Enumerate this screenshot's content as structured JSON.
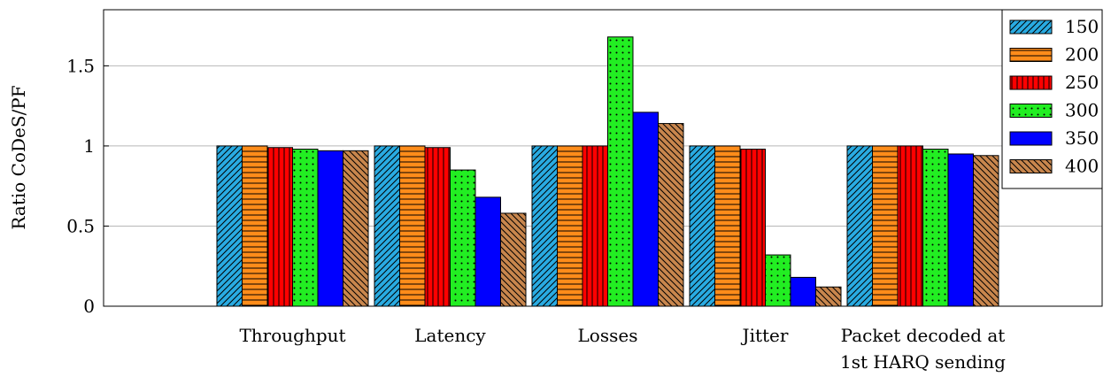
{
  "chart_data": {
    "type": "bar",
    "title": "",
    "xlabel": "",
    "ylabel": "Ratio CoDeS/PF",
    "ylim": [
      0,
      1.85
    ],
    "yticks": [
      0,
      0.5,
      1,
      1.5
    ],
    "ytick_labels": [
      "0",
      "0.5",
      "1",
      "1.5"
    ],
    "grid": "horizontal",
    "legend_position": "top-right",
    "categories": [
      [
        "Throughput"
      ],
      [
        "Latency"
      ],
      [
        "Losses"
      ],
      [
        "Jitter"
      ],
      [
        "Packet decoded at",
        "1st HARQ sending"
      ]
    ],
    "series": [
      {
        "name": "150",
        "color": "#29abe2",
        "pattern": "diagonal-ne",
        "values": [
          1.0,
          1.0,
          1.0,
          1.0,
          1.0
        ]
      },
      {
        "name": "200",
        "color": "#ff8c1a",
        "pattern": "horizontal",
        "values": [
          1.0,
          1.0,
          1.0,
          1.0,
          1.0
        ]
      },
      {
        "name": "250",
        "color": "#ff0000",
        "pattern": "vertical",
        "values": [
          0.99,
          0.99,
          1.0,
          0.98,
          1.0
        ]
      },
      {
        "name": "300",
        "color": "#22ee22",
        "pattern": "dots",
        "values": [
          0.98,
          0.85,
          1.68,
          0.32,
          0.98
        ]
      },
      {
        "name": "350",
        "color": "#0000ff",
        "pattern": "none",
        "values": [
          0.97,
          0.68,
          1.21,
          0.18,
          0.95
        ]
      },
      {
        "name": "400",
        "color": "#c8864d",
        "pattern": "diagonal-nw",
        "values": [
          0.97,
          0.58,
          1.14,
          0.12,
          0.94
        ]
      }
    ]
  }
}
